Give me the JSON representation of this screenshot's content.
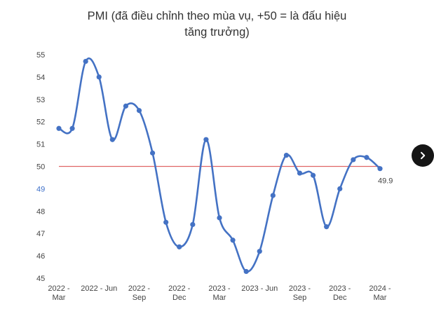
{
  "title_line1": "PMI (đã điều chỉnh theo mùa vụ, +50 = là đấu hiệu",
  "title_line2": "tăng trưởng)",
  "colors": {
    "line": "#4472c4",
    "threshold": "#e06666",
    "highlight_tick": "#3d6fc9",
    "button": "#151515"
  },
  "next_button": {
    "icon": "chevron-right-icon"
  },
  "chart_data": {
    "type": "line",
    "ylim": [
      45,
      55
    ],
    "y_ticks": [
      45,
      46,
      47,
      48,
      49,
      50,
      51,
      52,
      53,
      54,
      55
    ],
    "highlighted_y_tick": 49,
    "threshold": 50,
    "x_tick_labels": [
      [
        "2022 -",
        "Mar"
      ],
      [
        "2022 - Jun"
      ],
      [
        "2022 -",
        "Sep"
      ],
      [
        "2022 -",
        "Dec"
      ],
      [
        "2023 -",
        "Mar"
      ],
      [
        "2023 - Jun"
      ],
      [
        "2023 -",
        "Sep"
      ],
      [
        "2023 -",
        "Dec"
      ],
      [
        "2024 -",
        "Mar"
      ]
    ],
    "series": [
      {
        "values": [
          51.7,
          51.7,
          54.7,
          54.0,
          51.2,
          52.7,
          52.5,
          50.6,
          47.5,
          46.4,
          47.4,
          51.2,
          47.7,
          46.7,
          45.3,
          46.2,
          48.7,
          50.5,
          49.7,
          49.6,
          47.3,
          49.0,
          50.3,
          50.4,
          49.9
        ]
      }
    ],
    "last_value_label": "49.9"
  }
}
